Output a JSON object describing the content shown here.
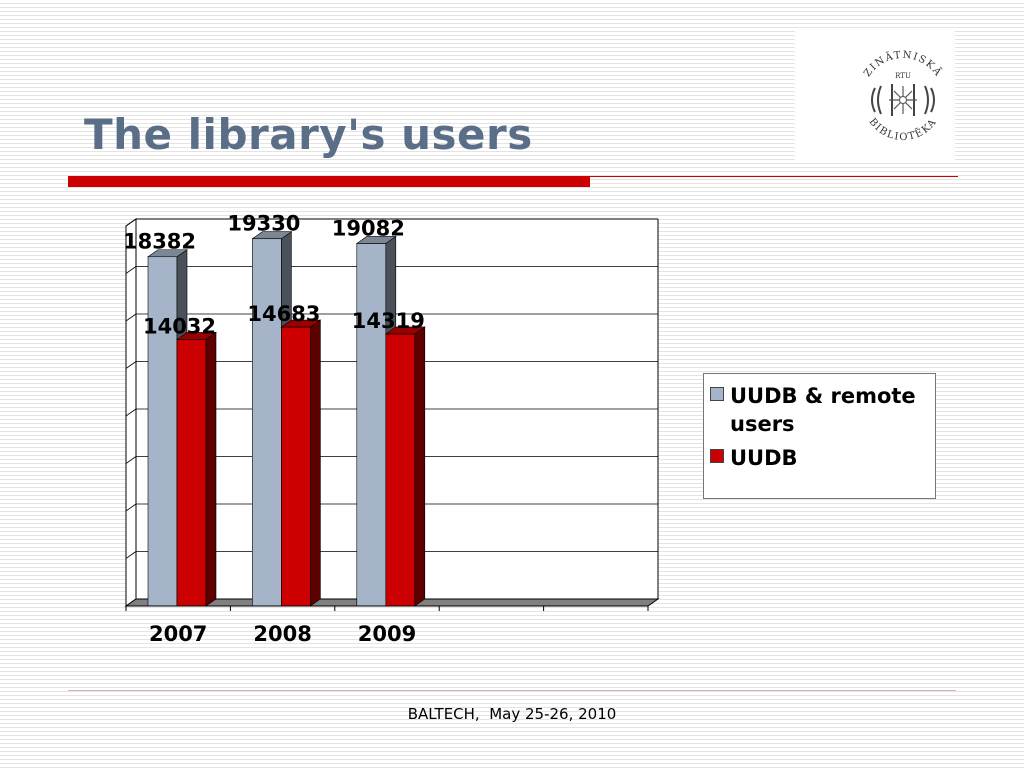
{
  "slide": {
    "title": "The library's users",
    "footer": "BALTECH,  May 25-26, 2010"
  },
  "logo": {
    "top_text": "ZINĀTNISKĀ",
    "bottom_text": "BIBLIOTĒKA",
    "center_text": "RTU"
  },
  "colors": {
    "title": "#5a6e87",
    "accent_red": "#cc0000",
    "series_remote": "#a5b4c8",
    "series_uudb": "#cc0000"
  },
  "chart_data": {
    "type": "bar",
    "categories": [
      "2007",
      "2008",
      "2009"
    ],
    "series": [
      {
        "name": "UUDB & remote users",
        "values": [
          18382,
          19330,
          19082
        ],
        "color": "#a5b4c8"
      },
      {
        "name": "UUDB",
        "values": [
          14032,
          14683,
          14319
        ],
        "color": "#cc0000"
      }
    ],
    "ylim": [
      0,
      20000
    ],
    "grid": true,
    "legend": "right",
    "style": "3d-clustered"
  }
}
